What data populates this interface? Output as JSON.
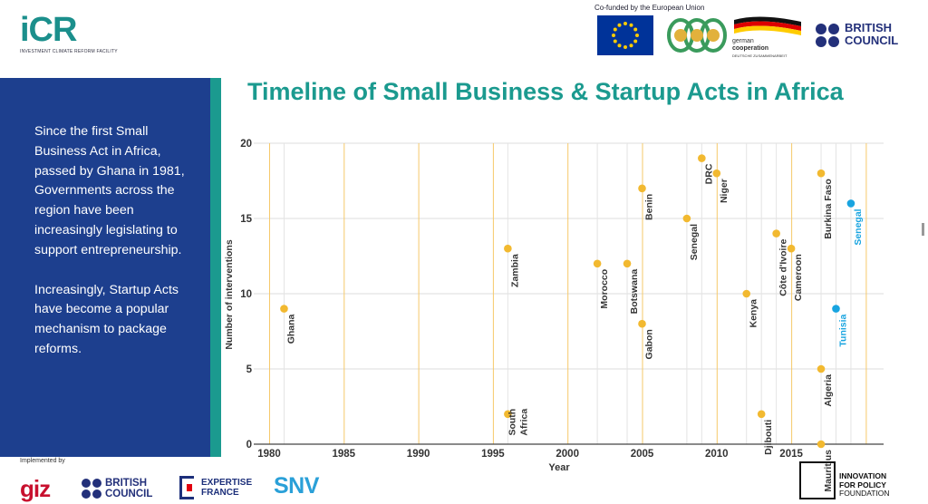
{
  "header": {
    "icr_logo": "iCR",
    "icr_subtitle": "INVESTMENT CLIMATE REFORM FACILITY",
    "cofunded_text": "Co-funded by the European Union",
    "german_cooperation": [
      "german",
      "cooperation",
      "DEUTSCHE ZUSAMMENARBEIT"
    ],
    "british_council": [
      "BRITISH",
      "COUNCIL"
    ]
  },
  "sidebar": {
    "paragraphs": [
      "Since the first Small Business Act in Africa, passed by Ghana in 1981, Governments across the region have been increasingly legislating to support entrepreneurship.",
      "Increasingly, Startup Acts have become a popular mechanism to package reforms."
    ]
  },
  "footer": {
    "implemented_by": "Implemented by",
    "giz": "giz",
    "british_council": [
      "BRITISH",
      "COUNCIL"
    ],
    "expertise_france": [
      "EXPERTISE",
      "FRANCE"
    ],
    "snv": "SNV",
    "ipf": [
      "INNOVATION",
      "FOR POLICY",
      "FOUNDATION"
    ]
  },
  "colors": {
    "teal": "#1b9a8f",
    "navy": "#1d3f8e",
    "small_business_act": "#f2b930",
    "startup_act": "#18a4e0"
  },
  "chart_data": {
    "type": "scatter",
    "title": "Timeline of Small Business & Startup Acts in Africa",
    "xlabel": "Year",
    "ylabel": "Number of interventions",
    "xlim": [
      1979,
      2020
    ],
    "ylim": [
      0,
      20
    ],
    "xticks": [
      1980,
      1985,
      1990,
      1995,
      2000,
      2005,
      2010,
      2015
    ],
    "yticks": [
      0,
      5,
      10,
      15,
      20
    ],
    "vertical_year_lines": [
      1980,
      1985,
      1990,
      1995,
      2000,
      2005,
      2010,
      2015,
      2020
    ],
    "horizontal_grid": true,
    "legend": "none",
    "series": [
      {
        "points": [
          {
            "label": "Ghana",
            "x": 1981,
            "y": 9
          },
          {
            "label": "South Africa",
            "x": 1996,
            "y": 2
          },
          {
            "label": "Zambia",
            "x": 1996,
            "y": 13
          },
          {
            "label": "Morocco",
            "x": 2002,
            "y": 12
          },
          {
            "label": "Botswana",
            "x": 2004,
            "y": 12
          },
          {
            "label": "Benin",
            "x": 2005,
            "y": 17
          },
          {
            "label": "Gabon",
            "x": 2005,
            "y": 8
          },
          {
            "label": "Senegal",
            "x": 2008,
            "y": 15
          },
          {
            "label": "DRC",
            "x": 2009,
            "y": 19
          },
          {
            "label": "Niger",
            "x": 2010,
            "y": 18
          },
          {
            "label": "Kenya",
            "x": 2012,
            "y": 10
          },
          {
            "label": "Djibouti",
            "x": 2013,
            "y": 2
          },
          {
            "label": "Côte d'Ivoire",
            "x": 2014,
            "y": 14
          },
          {
            "label": "Cameroon",
            "x": 2015,
            "y": 13
          },
          {
            "label": "Burkina Faso",
            "x": 2017,
            "y": 18
          },
          {
            "label": "Algeria",
            "x": 2017,
            "y": 5
          },
          {
            "label": "Mauritius",
            "x": 2017,
            "y": 0
          }
        ]
      },
      {
        "points": [
          {
            "label": "Tunisia",
            "x": 2018,
            "y": 9
          },
          {
            "label": "Senegal",
            "x": 2019,
            "y": 16
          }
        ]
      }
    ]
  }
}
